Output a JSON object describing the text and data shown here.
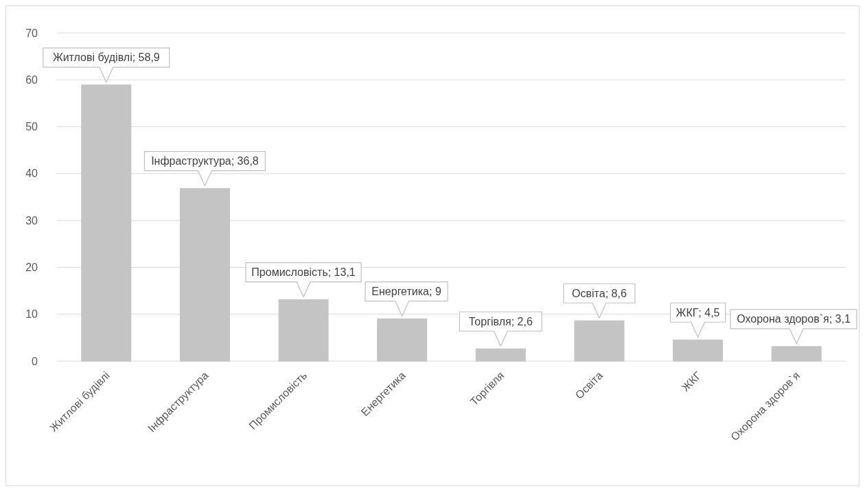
{
  "chart_data": {
    "type": "bar",
    "categories": [
      "Житлові будівлі",
      "Інфраструктура",
      "Промисловість",
      "Енергетика",
      "Торгівля",
      "Освіта",
      "ЖКГ",
      "Охорона здоров`я"
    ],
    "values": [
      58.9,
      36.8,
      13.1,
      9,
      2.6,
      8.6,
      4.5,
      3.1
    ],
    "value_labels": [
      "Житлові будівлі; 58,9",
      "Інфраструктура; 36,8",
      "Промисловість; 13,1",
      "Енергетика; 9",
      "Торгівля; 2,6",
      "Освіта; 8,6",
      "ЖКГ; 4,5",
      "Охорона здоров`я; 3,1"
    ],
    "color": "#c4c4c4",
    "ylim": [
      0,
      70
    ],
    "yticks": [
      0,
      10,
      20,
      30,
      40,
      50,
      60,
      70
    ],
    "grid": "y"
  }
}
